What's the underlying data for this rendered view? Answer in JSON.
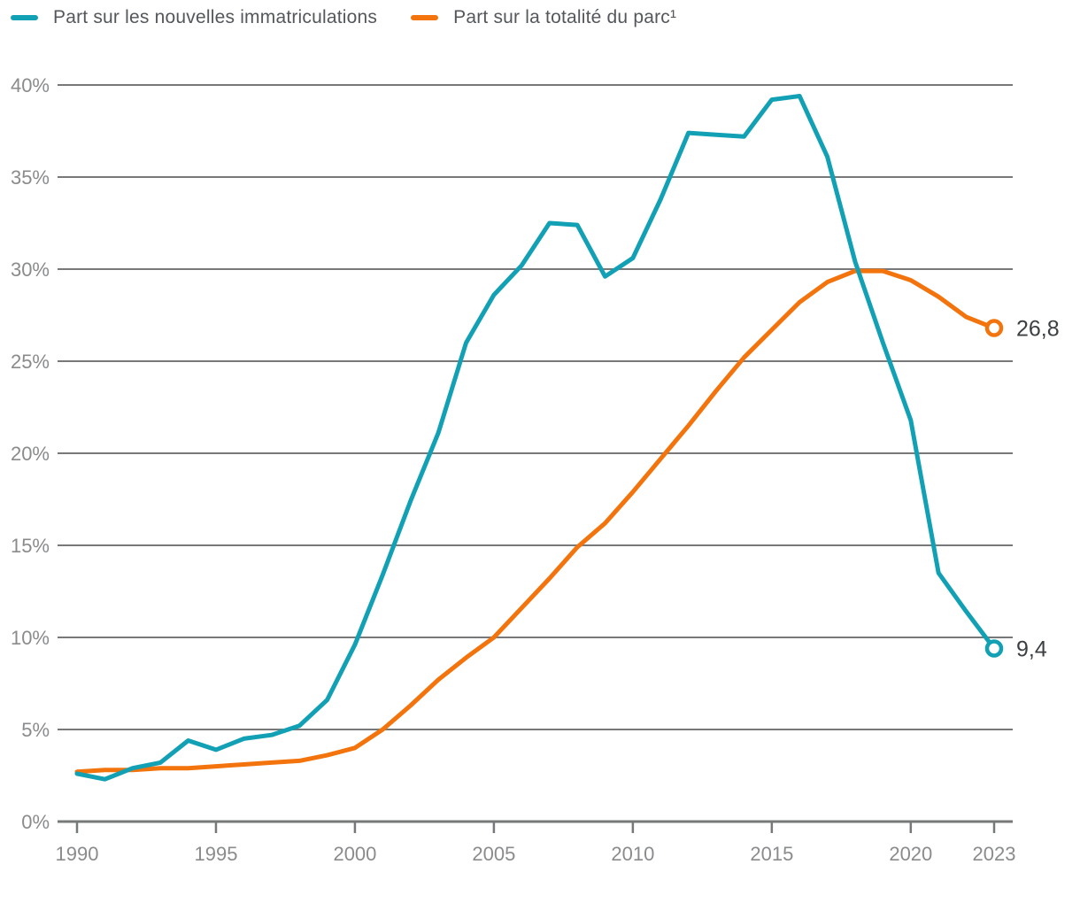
{
  "colors": {
    "background": "#ffffff",
    "grid": "#77787a",
    "tick_text": "#8a8b8d",
    "value_text": "#3c4043",
    "legend_text": "#54575b"
  },
  "chart_data": {
    "type": "line",
    "title": "",
    "xlabel": "",
    "ylabel": "",
    "grid": true,
    "legend_position": "top",
    "ylim": [
      0,
      40
    ],
    "yticks": [
      0,
      5,
      10,
      15,
      20,
      25,
      30,
      35,
      40
    ],
    "ytick_labels": [
      "0%",
      "5%",
      "10%",
      "15%",
      "20%",
      "25%",
      "30%",
      "35%",
      "40%"
    ],
    "xticks": [
      1990,
      1995,
      2000,
      2005,
      2010,
      2015,
      2020,
      2023
    ],
    "xtick_labels": [
      "1990",
      "1995",
      "2000",
      "2005",
      "2010",
      "2015",
      "2020",
      "2023"
    ],
    "x": [
      1990,
      1991,
      1992,
      1993,
      1994,
      1995,
      1996,
      1997,
      1998,
      1999,
      2000,
      2001,
      2002,
      2003,
      2004,
      2005,
      2006,
      2007,
      2008,
      2009,
      2010,
      2011,
      2012,
      2013,
      2014,
      2015,
      2016,
      2017,
      2018,
      2019,
      2020,
      2021,
      2022,
      2023
    ],
    "series": [
      {
        "name": "Part sur les nouvelles immatriculations",
        "color": "#12a0b5",
        "end_label": "9,4",
        "values": [
          2.6,
          2.3,
          2.9,
          3.2,
          4.4,
          3.9,
          4.5,
          4.7,
          5.2,
          6.6,
          9.6,
          13.4,
          17.4,
          21.1,
          26.0,
          28.6,
          30.2,
          32.5,
          32.4,
          29.6,
          30.6,
          33.8,
          37.4,
          37.3,
          37.2,
          39.2,
          39.4,
          36.1,
          30.4,
          26.0,
          21.8,
          13.5,
          11.4,
          9.4
        ]
      },
      {
        "name": "Part sur la totalité du parc¹",
        "color": "#f3730c",
        "end_label": "26,8",
        "values": [
          2.7,
          2.8,
          2.8,
          2.9,
          2.9,
          3.0,
          3.1,
          3.2,
          3.3,
          3.6,
          4.0,
          5.0,
          6.3,
          7.7,
          8.9,
          10.0,
          11.6,
          13.2,
          14.9,
          16.2,
          17.9,
          19.7,
          21.5,
          23.4,
          25.2,
          26.7,
          28.2,
          29.3,
          29.9,
          29.9,
          29.4,
          28.5,
          27.4,
          26.8
        ]
      }
    ]
  }
}
